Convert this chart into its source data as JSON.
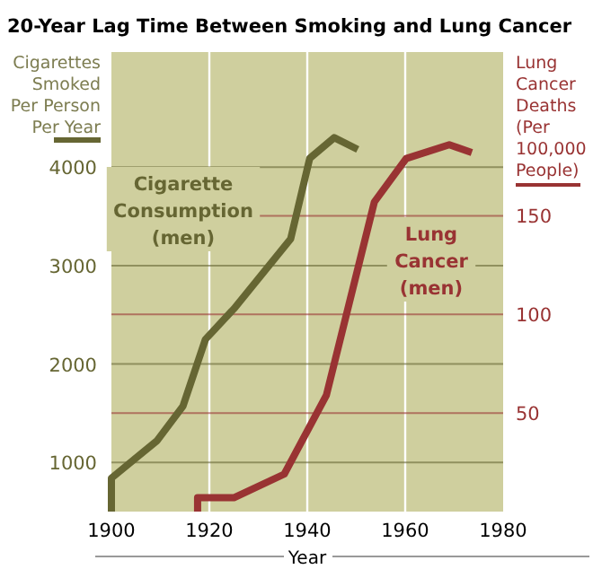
{
  "chart_data": {
    "type": "line",
    "title": "20-Year Lag Time Between Smoking and Lung Cancer",
    "xlabel": "Year",
    "ylabel": "Cigarettes\nSmoked\nPer Person\nPer Year",
    "y2label": "Lung\nCancer\nDeaths\n(Per\n100,000\nPeople)",
    "xlim": [
      1900,
      1980
    ],
    "xticks": [
      1900,
      1920,
      1940,
      1960,
      1980
    ],
    "ylim": [
      500,
      5170
    ],
    "yticks": [
      1000,
      2000,
      3000,
      4000
    ],
    "y2lim": [
      0,
      233
    ],
    "y2ticks": [
      50,
      100,
      150
    ],
    "grid": true,
    "marker": "none",
    "line_style": "solid",
    "series": [
      {
        "name": "Cigarette\nConsumption\n(men)",
        "color": "#666633",
        "x": [
          1900,
          1900,
          1909.3,
          1914.6,
          1919.2,
          1925,
          1936.6,
          1940.5,
          1945.5,
          1950.3
        ],
        "values": [
          500,
          840,
          1220,
          1570,
          2250,
          2560,
          3270,
          4090,
          4300,
          4180
        ]
      },
      {
        "name": "Lung\nCancer\n(men)",
        "color": "#993333",
        "axis": "y2",
        "x": [
          1917.6,
          1917.6,
          1925,
          1935.3,
          1943.9,
          1953.7,
          1960.2,
          1969,
          1973.6
        ],
        "values": [
          0,
          7,
          7,
          19,
          59,
          157,
          179,
          186,
          182
        ]
      }
    ]
  }
}
